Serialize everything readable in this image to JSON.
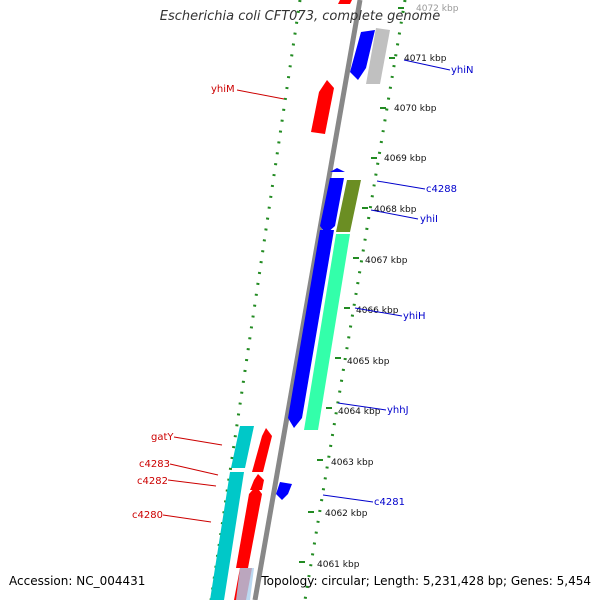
{
  "title": "Escherichia coli CFT073, complete genome",
  "footer": {
    "accession": "Accession: NC_004431",
    "stats": "Topology: circular; Length: 5,231,428 bp; Genes: 5,454"
  },
  "ticks": [
    {
      "label": "4072 kbp"
    },
    {
      "label": "4071 kbp"
    },
    {
      "label": "4070 kbp"
    },
    {
      "label": "4069 kbp"
    },
    {
      "label": "4068 kbp"
    },
    {
      "label": "4067 kbp"
    },
    {
      "label": "4066 kbp"
    },
    {
      "label": "4065 kbp"
    },
    {
      "label": "4064 kbp"
    },
    {
      "label": "4063 kbp"
    },
    {
      "label": "4062 kbp"
    },
    {
      "label": "4061 kbp"
    }
  ],
  "gene_labels": [
    {
      "name": "yhiN",
      "color": "#0000cc"
    },
    {
      "name": "yhiM",
      "color": "#cc0000"
    },
    {
      "name": "c4288",
      "color": "#0000cc"
    },
    {
      "name": "yhiI",
      "color": "#0000cc"
    },
    {
      "name": "yhiH",
      "color": "#0000cc"
    },
    {
      "name": "yhhJ",
      "color": "#0000cc"
    },
    {
      "name": "gatY",
      "color": "#cc0000"
    },
    {
      "name": "c4283",
      "color": "#cc0000"
    },
    {
      "name": "c4282",
      "color": "#cc0000"
    },
    {
      "name": "c4281",
      "color": "#0000cc"
    },
    {
      "name": "c4280",
      "color": "#cc0000"
    }
  ],
  "colors": {
    "forward": "#ff0000",
    "reverse": "#0000ff",
    "backbone": "#888888",
    "dots": "#228b22",
    "teal": "#00c8c8",
    "mint": "#33ffaa",
    "olive": "#6b8e23",
    "gray_feature": "#c0c0c0"
  }
}
